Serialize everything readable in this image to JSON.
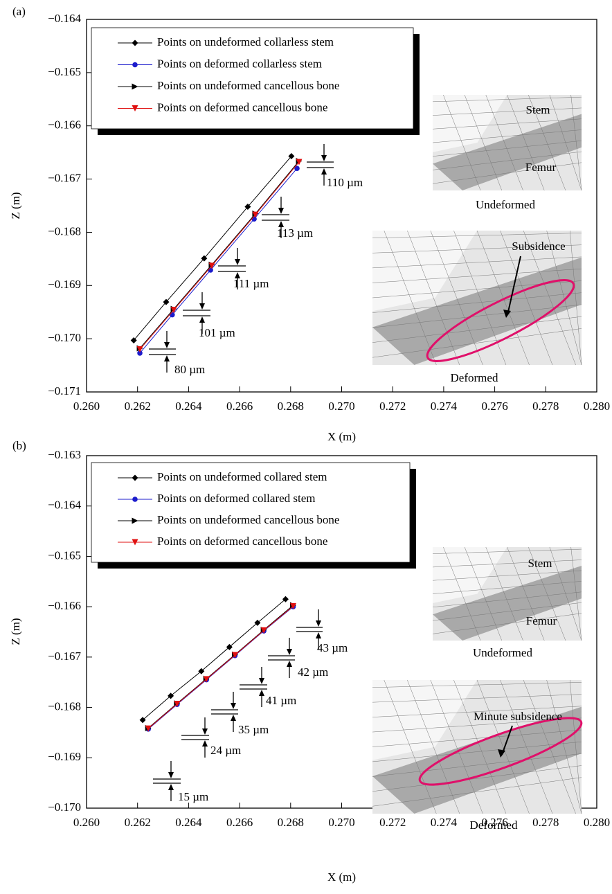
{
  "chart_data": [
    {
      "type": "line",
      "panel_label": "(a)",
      "x_label": "X (m)",
      "y_label": "Z (m)",
      "xlim": [
        0.26,
        0.28
      ],
      "ylim": [
        -0.171,
        -0.164
      ],
      "xticks": [
        {
          "value": 0.26,
          "label": "0.260"
        },
        {
          "value": 0.262,
          "label": "0.262"
        },
        {
          "value": 0.264,
          "label": "0.264"
        },
        {
          "value": 0.266,
          "label": "0.266"
        },
        {
          "value": 0.268,
          "label": "0.268"
        },
        {
          "value": 0.27,
          "label": "0.270"
        },
        {
          "value": 0.272,
          "label": "0.272"
        },
        {
          "value": 0.274,
          "label": "0.274"
        },
        {
          "value": 0.276,
          "label": "0.276"
        },
        {
          "value": 0.278,
          "label": "0.278"
        },
        {
          "value": 0.28,
          "label": "0.280"
        }
      ],
      "yticks": [
        {
          "value": -0.164,
          "label": "−0.164"
        },
        {
          "value": -0.165,
          "label": "−0.165"
        },
        {
          "value": -0.166,
          "label": "−0.166"
        },
        {
          "value": -0.167,
          "label": "−0.167"
        },
        {
          "value": -0.168,
          "label": "−0.168"
        },
        {
          "value": -0.169,
          "label": "−0.169"
        },
        {
          "value": -0.17,
          "label": "−0.170"
        },
        {
          "value": -0.171,
          "label": "−0.171"
        }
      ],
      "series": [
        {
          "name": "Points on undeformed collarless stem",
          "color": "#000000",
          "marker": "diamond",
          "x": [
            0.26185,
            0.26312,
            0.26461,
            0.26632,
            0.26803
          ],
          "values": [
            -0.17003,
            -0.16931,
            -0.16849,
            -0.16752,
            -0.16657
          ]
        },
        {
          "name": "Points on deformed collarless stem",
          "color": "#1c1ccc",
          "marker": "circle",
          "x": [
            0.26209,
            0.26336,
            0.26486,
            0.26657,
            0.26825
          ],
          "values": [
            -0.17027,
            -0.16955,
            -0.16871,
            -0.16775,
            -0.1668
          ]
        },
        {
          "name": "Points on undeformed cancellous bone",
          "color": "#000000",
          "marker": "triangle-right",
          "x": [
            0.26209,
            0.26342,
            0.26491,
            0.26662,
            0.26833
          ],
          "values": [
            -0.17018,
            -0.16944,
            -0.16861,
            -0.16765,
            -0.16666
          ]
        },
        {
          "name": "Points on deformed cancellous bone",
          "color": "#e01010",
          "marker": "triangle-down",
          "x": [
            0.26209,
            0.26342,
            0.26491,
            0.26662,
            0.26833
          ],
          "values": [
            -0.1702,
            -0.16946,
            -0.16863,
            -0.16767,
            -0.16668
          ]
        }
      ],
      "annotations": [
        "110 µm",
        "113 µm",
        "111 µm",
        "101 µm",
        "80 µm"
      ],
      "inset_labels": [
        "Stem",
        "Femur",
        "Undeformed",
        "Subsidence",
        "Deformed"
      ]
    },
    {
      "type": "line",
      "panel_label": "(b)",
      "x_label": "X (m)",
      "y_label": "Z (m)",
      "xlim": [
        0.26,
        0.28
      ],
      "ylim": [
        -0.17,
        -0.163
      ],
      "xticks": [
        {
          "value": 0.26,
          "label": "0.260"
        },
        {
          "value": 0.262,
          "label": "0.262"
        },
        {
          "value": 0.264,
          "label": "0.264"
        },
        {
          "value": 0.266,
          "label": "0.266"
        },
        {
          "value": 0.268,
          "label": "0.268"
        },
        {
          "value": 0.27,
          "label": "0.270"
        },
        {
          "value": 0.272,
          "label": "0.272"
        },
        {
          "value": 0.274,
          "label": "0.274"
        },
        {
          "value": 0.276,
          "label": "0.276"
        },
        {
          "value": 0.278,
          "label": "0.278"
        },
        {
          "value": 0.28,
          "label": "0.280"
        }
      ],
      "yticks": [
        {
          "value": -0.163,
          "label": "−0.163"
        },
        {
          "value": -0.164,
          "label": "−0.164"
        },
        {
          "value": -0.165,
          "label": "−0.165"
        },
        {
          "value": -0.166,
          "label": "−0.166"
        },
        {
          "value": -0.167,
          "label": "−0.167"
        },
        {
          "value": -0.168,
          "label": "−0.168"
        },
        {
          "value": -0.169,
          "label": "−0.169"
        },
        {
          "value": -0.17,
          "label": "−0.170"
        }
      ],
      "series": [
        {
          "name": "Points on undeformed collared stem",
          "color": "#000000",
          "marker": "diamond",
          "x": [
            0.2622,
            0.2633,
            0.2645,
            0.2656,
            0.2667,
            0.2678
          ],
          "values": [
            -0.16825,
            -0.16777,
            -0.16728,
            -0.1668,
            -0.16632,
            -0.16585
          ]
        },
        {
          "name": "Points on deformed collared stem",
          "color": "#1c1ccc",
          "marker": "circle",
          "x": [
            0.26242,
            0.26355,
            0.2647,
            0.26582,
            0.26695,
            0.2681
          ],
          "values": [
            -0.16843,
            -0.16794,
            -0.16745,
            -0.16697,
            -0.16648,
            -0.166
          ]
        },
        {
          "name": "Points on undeformed cancellous bone",
          "color": "#000000",
          "marker": "triangle-right",
          "x": [
            0.26242,
            0.26355,
            0.2647,
            0.26582,
            0.26695,
            0.2681
          ],
          "values": [
            -0.16841,
            -0.16792,
            -0.16743,
            -0.16695,
            -0.16646,
            -0.16597
          ]
        },
        {
          "name": "Points on deformed cancellous bone",
          "color": "#e01010",
          "marker": "triangle-down",
          "x": [
            0.26242,
            0.26355,
            0.2647,
            0.26582,
            0.26695,
            0.2681
          ],
          "values": [
            -0.16842,
            -0.16793,
            -0.16744,
            -0.16696,
            -0.16647,
            -0.16599
          ]
        }
      ],
      "annotations": [
        "43 µm",
        "42 µm",
        "41 µm",
        "35 µm",
        "24 µm",
        "15 µm"
      ],
      "inset_labels": [
        "Stem",
        "Femur",
        "Undeformed",
        "Minute subsidence",
        "Deformed"
      ]
    }
  ]
}
